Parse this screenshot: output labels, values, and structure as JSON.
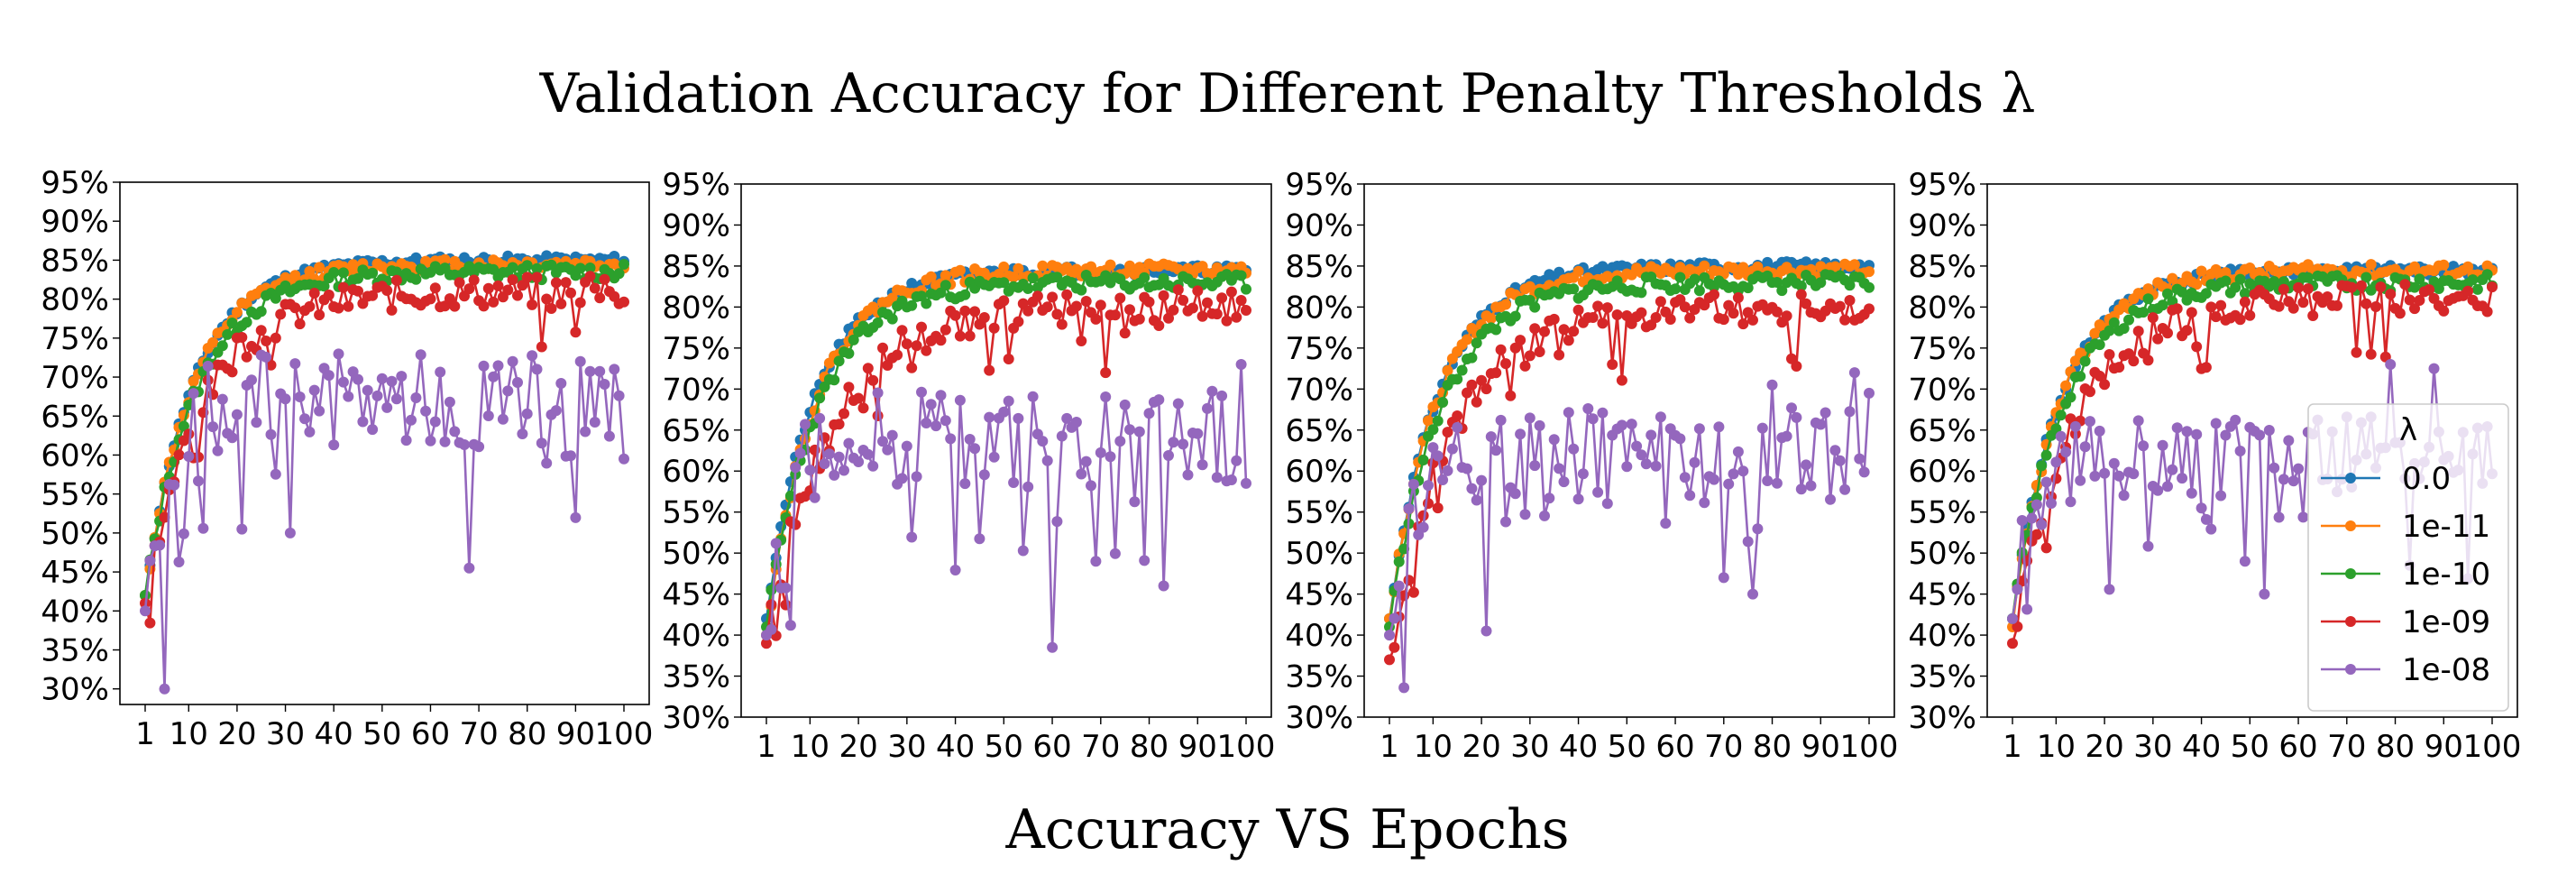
{
  "figure": {
    "title": "Validation Accuracy for Different Penalty Thresholds λ",
    "xlabel": "Accuracy VS Epochs"
  },
  "legend": {
    "title": "λ",
    "location": "center-right of fourth panel",
    "entries": [
      "0.0",
      "1e-11",
      "1e-10",
      "1e-09",
      "1e-08"
    ]
  },
  "colors": {
    "0.0": "#1f77b4",
    "1e-11": "#ff7f0e",
    "1e-10": "#2ca02c",
    "1e-09": "#d62728",
    "1e-08": "#9467bd"
  },
  "chart_data": [
    {
      "type": "line",
      "panel": 1,
      "x": "epochs 1..100",
      "xticks": [
        1,
        10,
        20,
        30,
        40,
        50,
        60,
        70,
        80,
        90,
        100
      ],
      "xtick_labels": [
        "1",
        "10",
        "20",
        "30",
        "40",
        "50",
        "60",
        "70",
        "80",
        "90",
        "100"
      ],
      "ylim": [
        0.28,
        0.95
      ],
      "yticks": [
        0.3,
        0.35,
        0.4,
        0.45,
        0.5,
        0.55,
        0.6,
        0.65,
        0.7,
        0.75,
        0.8,
        0.85,
        0.9,
        0.95
      ],
      "ytick_labels": [
        "30%",
        "35%",
        "40%",
        "45%",
        "50%",
        "55%",
        "60%",
        "65%",
        "70%",
        "75%",
        "80%",
        "85%",
        "90%",
        "95%"
      ],
      "series": [
        {
          "name": "0.0",
          "start": 0.42,
          "final": 0.85,
          "rate": 0.1,
          "noise": 0.006,
          "seed": 11
        },
        {
          "name": "1e-11",
          "start": 0.42,
          "final": 0.845,
          "rate": 0.1,
          "noise": 0.008,
          "seed": 12
        },
        {
          "name": "1e-10",
          "start": 0.42,
          "final": 0.835,
          "rate": 0.095,
          "noise": 0.01,
          "seed": 13
        },
        {
          "name": "1e-09",
          "start": 0.41,
          "final": 0.81,
          "rate": 0.085,
          "noise": 0.02,
          "seed": 14
        },
        {
          "name": "1e-08",
          "start": 0.4,
          "final": 0.67,
          "rate": 0.25,
          "noise": 0.06,
          "seed": 15,
          "pins": [
            [
              5,
              0.3
            ],
            [
              100,
              0.595
            ],
            [
              98,
              0.71
            ],
            [
              77,
              0.72
            ],
            [
              68,
              0.455
            ],
            [
              21,
              0.505
            ],
            [
              31,
              0.5
            ]
          ]
        }
      ]
    },
    {
      "type": "line",
      "panel": 2,
      "x": "epochs 1..100",
      "xticks": [
        1,
        10,
        20,
        30,
        40,
        50,
        60,
        70,
        80,
        90,
        100
      ],
      "xtick_labels": [
        "1",
        "10",
        "20",
        "30",
        "40",
        "50",
        "60",
        "70",
        "80",
        "90",
        "100"
      ],
      "ylim": [
        0.3,
        0.95
      ],
      "yticks": [
        0.3,
        0.35,
        0.4,
        0.45,
        0.5,
        0.55,
        0.6,
        0.65,
        0.7,
        0.75,
        0.8,
        0.85,
        0.9,
        0.95
      ],
      "ytick_labels": [
        "30%",
        "35%",
        "40%",
        "45%",
        "50%",
        "55%",
        "60%",
        "65%",
        "70%",
        "75%",
        "80%",
        "85%",
        "90%",
        "95%"
      ],
      "series": [
        {
          "name": "0.0",
          "start": 0.42,
          "final": 0.845,
          "rate": 0.1,
          "noise": 0.006,
          "seed": 21
        },
        {
          "name": "1e-11",
          "start": 0.4,
          "final": 0.845,
          "rate": 0.1,
          "noise": 0.008,
          "seed": 22
        },
        {
          "name": "1e-10",
          "start": 0.41,
          "final": 0.83,
          "rate": 0.095,
          "noise": 0.01,
          "seed": 23
        },
        {
          "name": "1e-09",
          "start": 0.39,
          "final": 0.8,
          "rate": 0.075,
          "noise": 0.022,
          "seed": 24
        },
        {
          "name": "1e-08",
          "start": 0.4,
          "final": 0.64,
          "rate": 0.25,
          "noise": 0.06,
          "seed": 25,
          "pins": [
            [
              60,
              0.385
            ],
            [
              99,
              0.73
            ],
            [
              100,
              0.585
            ],
            [
              83,
              0.46
            ],
            [
              69,
              0.49
            ]
          ]
        }
      ]
    },
    {
      "type": "line",
      "panel": 3,
      "x": "epochs 1..100",
      "xticks": [
        1,
        10,
        20,
        30,
        40,
        50,
        60,
        70,
        80,
        90,
        100
      ],
      "xtick_labels": [
        "1",
        "10",
        "20",
        "30",
        "40",
        "50",
        "60",
        "70",
        "80",
        "90",
        "100"
      ],
      "ylim": [
        0.3,
        0.95
      ],
      "yticks": [
        0.3,
        0.35,
        0.4,
        0.45,
        0.5,
        0.55,
        0.6,
        0.65,
        0.7,
        0.75,
        0.8,
        0.85,
        0.9,
        0.95
      ],
      "ytick_labels": [
        "30%",
        "35%",
        "40%",
        "45%",
        "50%",
        "55%",
        "60%",
        "65%",
        "70%",
        "75%",
        "80%",
        "85%",
        "90%",
        "95%"
      ],
      "series": [
        {
          "name": "0.0",
          "start": 0.42,
          "final": 0.85,
          "rate": 0.1,
          "noise": 0.006,
          "seed": 31
        },
        {
          "name": "1e-11",
          "start": 0.42,
          "final": 0.845,
          "rate": 0.1,
          "noise": 0.008,
          "seed": 32
        },
        {
          "name": "1e-10",
          "start": 0.41,
          "final": 0.83,
          "rate": 0.095,
          "noise": 0.01,
          "seed": 33
        },
        {
          "name": "1e-09",
          "start": 0.37,
          "final": 0.8,
          "rate": 0.08,
          "noise": 0.02,
          "seed": 34
        },
        {
          "name": "1e-08",
          "start": 0.4,
          "final": 0.62,
          "rate": 0.25,
          "noise": 0.06,
          "seed": 35,
          "pins": [
            [
              21,
              0.405
            ],
            [
              76,
              0.45
            ],
            [
              70,
              0.47
            ],
            [
              97,
              0.72
            ],
            [
              100,
              0.695
            ],
            [
              80,
              0.705
            ]
          ]
        }
      ]
    },
    {
      "type": "line",
      "panel": 4,
      "x": "epochs 1..100",
      "xticks": [
        1,
        10,
        20,
        30,
        40,
        50,
        60,
        70,
        80,
        90,
        100
      ],
      "xtick_labels": [
        "1",
        "10",
        "20",
        "30",
        "40",
        "50",
        "60",
        "70",
        "80",
        "90",
        "100"
      ],
      "ylim": [
        0.3,
        0.95
      ],
      "yticks": [
        0.3,
        0.35,
        0.4,
        0.45,
        0.5,
        0.55,
        0.6,
        0.65,
        0.7,
        0.75,
        0.8,
        0.85,
        0.9,
        0.95
      ],
      "ytick_labels": [
        "30%",
        "35%",
        "40%",
        "45%",
        "50%",
        "55%",
        "60%",
        "65%",
        "70%",
        "75%",
        "80%",
        "85%",
        "90%",
        "95%"
      ],
      "series": [
        {
          "name": "0.0",
          "start": 0.42,
          "final": 0.845,
          "rate": 0.1,
          "noise": 0.006,
          "seed": 41
        },
        {
          "name": "1e-11",
          "start": 0.41,
          "final": 0.845,
          "rate": 0.1,
          "noise": 0.008,
          "seed": 42
        },
        {
          "name": "1e-10",
          "start": 0.42,
          "final": 0.83,
          "rate": 0.095,
          "noise": 0.01,
          "seed": 43
        },
        {
          "name": "1e-09",
          "start": 0.39,
          "final": 0.81,
          "rate": 0.08,
          "noise": 0.02,
          "seed": 44
        },
        {
          "name": "1e-08",
          "start": 0.42,
          "final": 0.62,
          "rate": 0.25,
          "noise": 0.05,
          "seed": 45,
          "pins": [
            [
              53,
              0.45
            ],
            [
              49,
              0.49
            ],
            [
              79,
              0.73
            ],
            [
              88,
              0.725
            ],
            [
              98,
              0.585
            ]
          ]
        }
      ]
    }
  ]
}
